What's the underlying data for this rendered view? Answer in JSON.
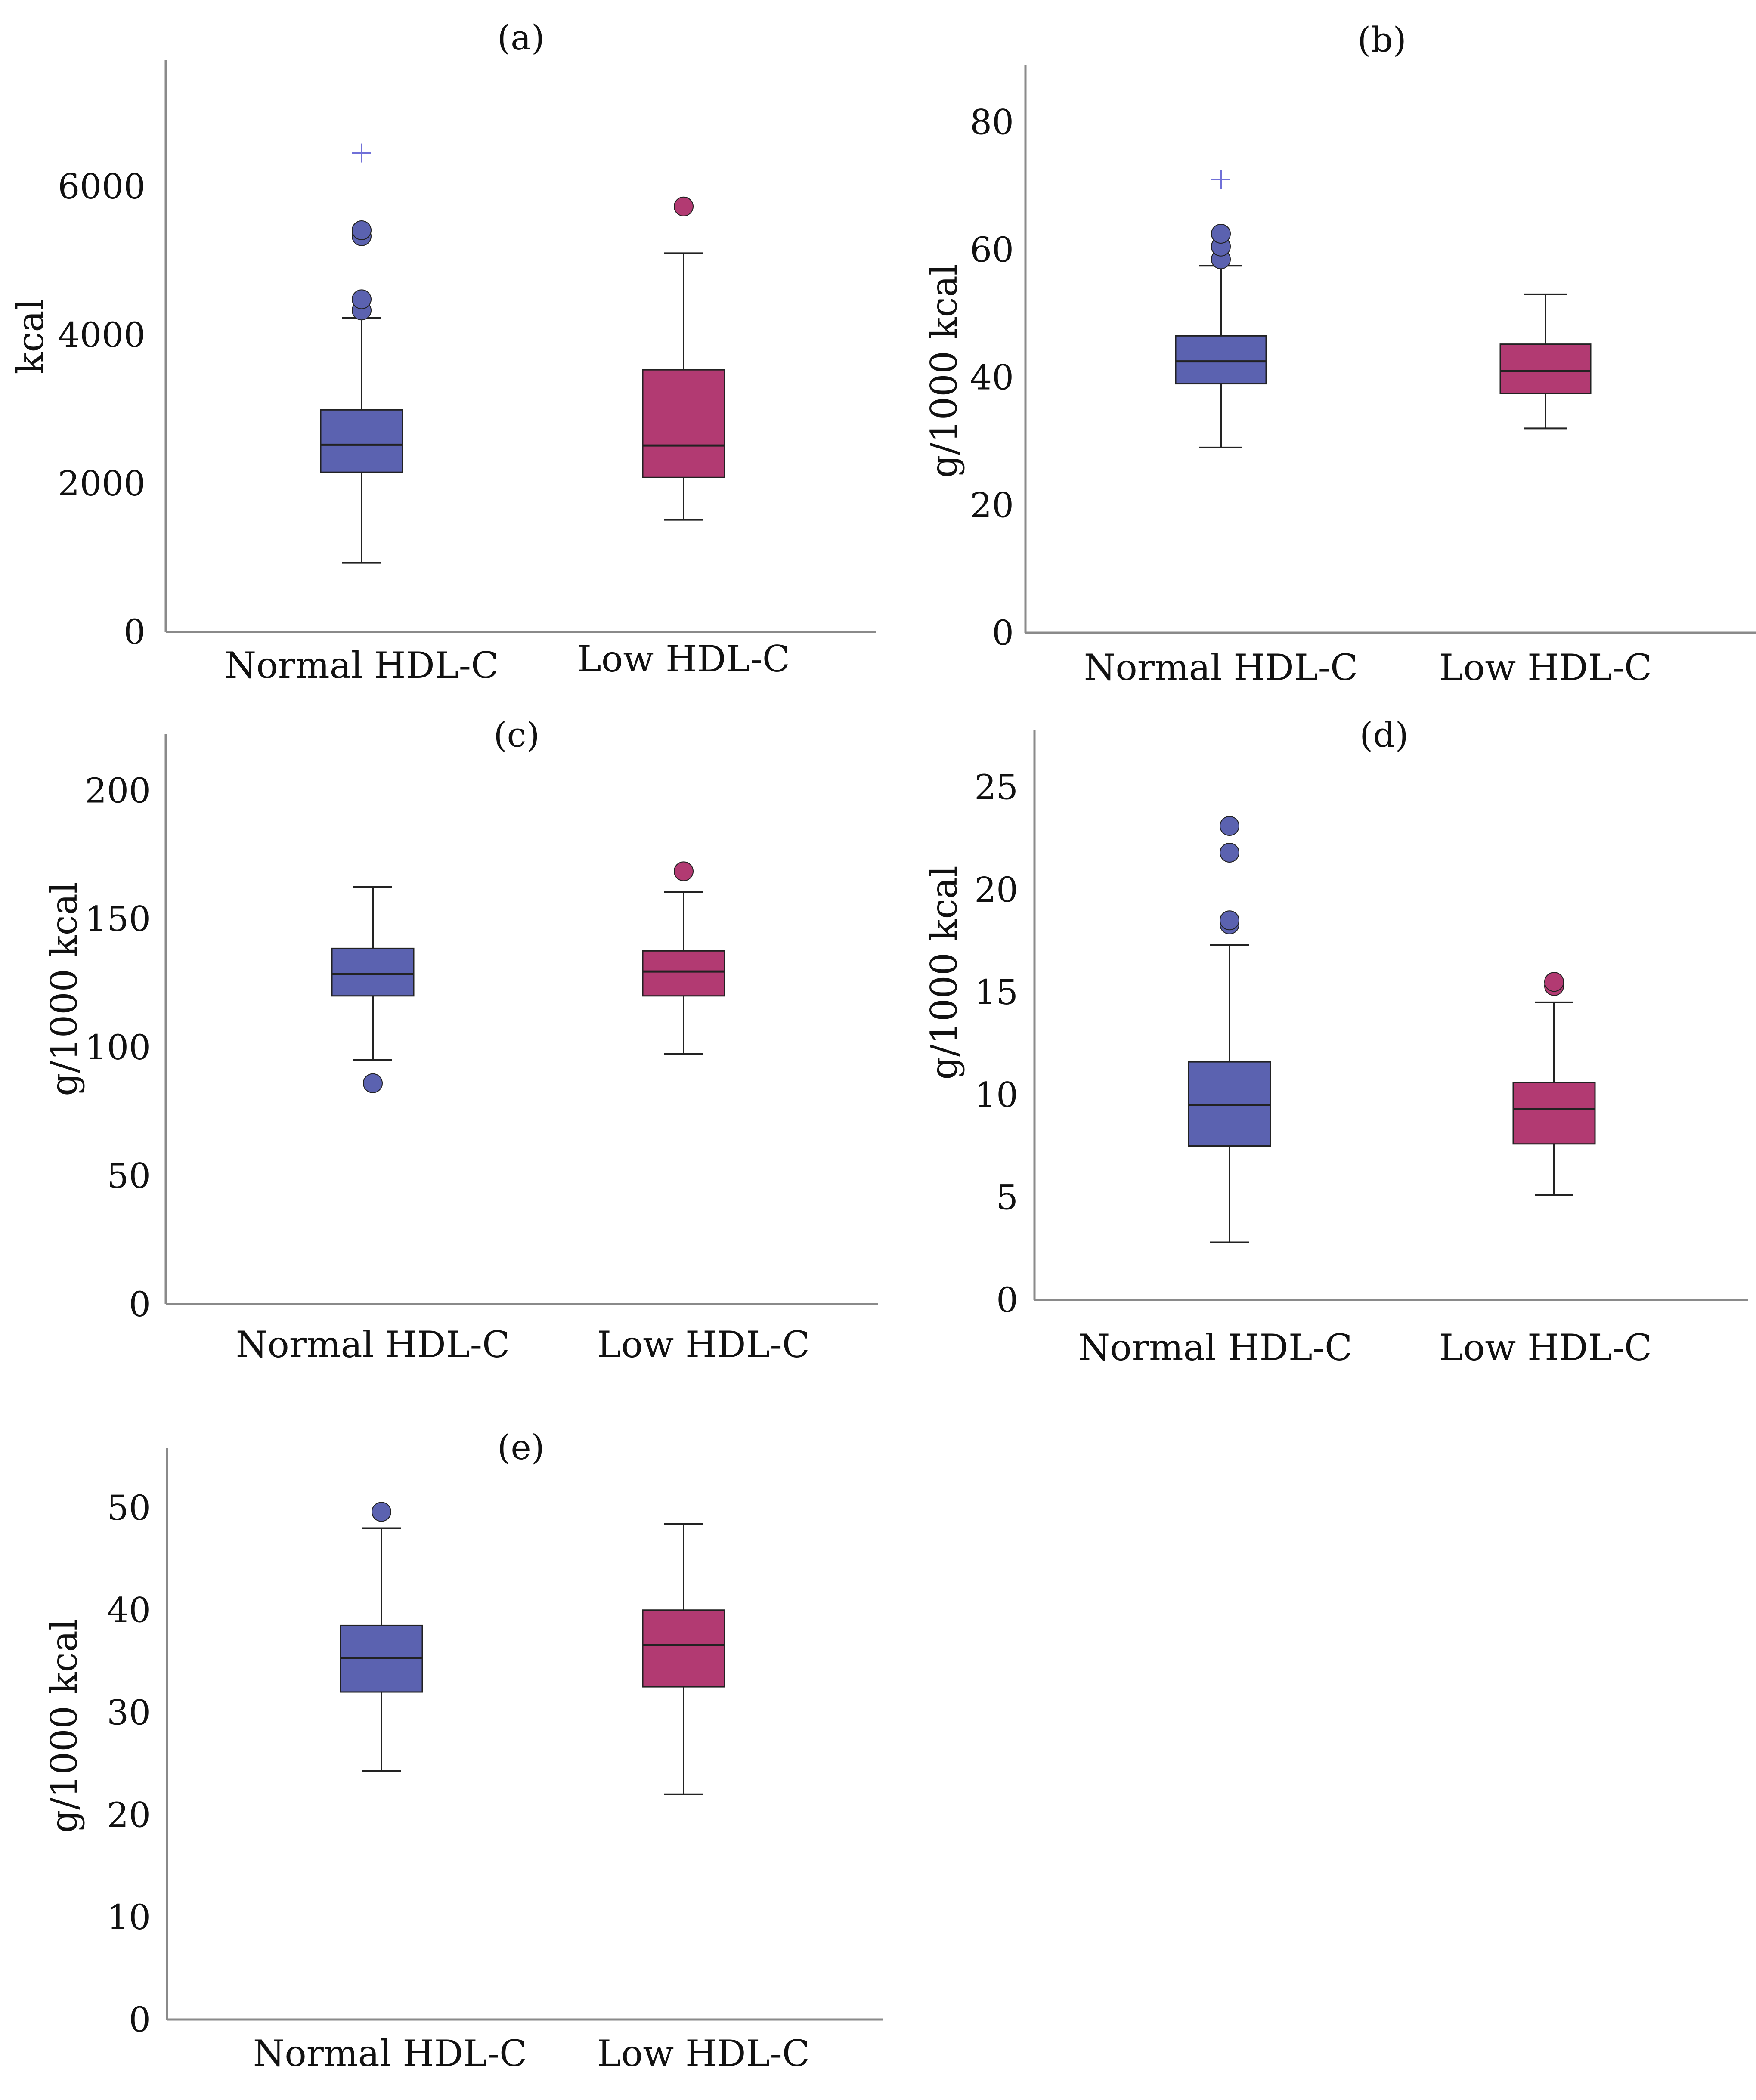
{
  "colors": {
    "normal": "#5B62B0",
    "low": "#B23A72",
    "axis": "#8A8A8A",
    "line": "#222222",
    "extreme": "#7070D8"
  },
  "chart_data": [
    {
      "id": "a",
      "type": "boxplot",
      "title": "(a)",
      "ylabel": "kcal",
      "xlabel": "",
      "ylim": [
        0,
        7700
      ],
      "yticks": [
        0,
        2000,
        4000,
        6000
      ],
      "categories": [
        "Normal HDL-C",
        "Low HDL-C"
      ],
      "series": [
        {
          "name": "Normal HDL-C",
          "q1": 2150,
          "median": 2520,
          "q3": 2990,
          "whisker_low": 930,
          "whisker_high": 4230,
          "outliers": [
            4330,
            4480,
            5330,
            5410
          ],
          "extremes": [
            6450
          ]
        },
        {
          "name": "Low HDL-C",
          "q1": 2080,
          "median": 2510,
          "q3": 3530,
          "whisker_low": 1510,
          "whisker_high": 5100,
          "outliers": [
            5730
          ],
          "extremes": []
        }
      ]
    },
    {
      "id": "b",
      "type": "boxplot",
      "title": "(b)",
      "ylabel": "g/1000 kcal",
      "xlabel": "",
      "ylim": [
        0,
        89
      ],
      "yticks": [
        0,
        20,
        40,
        60,
        80
      ],
      "categories": [
        "Normal HDL-C",
        "Low HDL-C"
      ],
      "series": [
        {
          "name": "Normal HDL-C",
          "q1": 39,
          "median": 42.5,
          "q3": 46.5,
          "whisker_low": 29,
          "whisker_high": 57.5,
          "outliers": [
            58.5,
            60.5,
            62.5
          ],
          "extremes": [
            71
          ]
        },
        {
          "name": "Low HDL-C",
          "q1": 37.5,
          "median": 41,
          "q3": 45.2,
          "whisker_low": 32,
          "whisker_high": 53,
          "outliers": [],
          "extremes": []
        }
      ]
    },
    {
      "id": "c",
      "type": "boxplot",
      "title": "(c)",
      "ylabel": "g/1000 kcal",
      "xlabel": "",
      "ylim": [
        0,
        222
      ],
      "yticks": [
        0,
        50,
        100,
        150,
        200
      ],
      "categories": [
        "Normal HDL-C",
        "Low HDL-C"
      ],
      "series": [
        {
          "name": "Normal HDL-C",
          "q1": 120,
          "median": 128.5,
          "q3": 138.5,
          "whisker_low": 95,
          "whisker_high": 162.5,
          "outliers": [
            86
          ],
          "extremes": []
        },
        {
          "name": "Low HDL-C",
          "q1": 120,
          "median": 129.5,
          "q3": 137.5,
          "whisker_low": 97.5,
          "whisker_high": 160.5,
          "outliers": [
            168.5
          ],
          "extremes": []
        }
      ]
    },
    {
      "id": "d",
      "type": "boxplot",
      "title": "(d)",
      "ylabel": "g/1000 kcal",
      "xlabel": "",
      "ylim": [
        0,
        27.8
      ],
      "yticks": [
        0,
        5,
        10,
        15,
        20,
        25
      ],
      "categories": [
        "Normal HDL-C",
        "Low HDL-C"
      ],
      "series": [
        {
          "name": "Normal HDL-C",
          "q1": 7.5,
          "median": 9.5,
          "q3": 11.6,
          "whisker_low": 2.8,
          "whisker_high": 17.3,
          "outliers": [
            18.3,
            18.5,
            21.8,
            23.1
          ],
          "extremes": []
        },
        {
          "name": "Low HDL-C",
          "q1": 7.6,
          "median": 9.3,
          "q3": 10.6,
          "whisker_low": 5.1,
          "whisker_high": 14.5,
          "outliers": [
            15.3,
            15.5
          ],
          "extremes": []
        }
      ]
    },
    {
      "id": "e",
      "type": "boxplot",
      "title": "(e)",
      "ylabel": "g/1000 kcal",
      "xlabel": "",
      "ylim": [
        0,
        55.8
      ],
      "yticks": [
        0,
        10,
        20,
        30,
        40,
        50
      ],
      "categories": [
        "Normal HDL-C",
        "Low HDL-C"
      ],
      "series": [
        {
          "name": "Normal HDL-C",
          "q1": 32,
          "median": 35.3,
          "q3": 38.5,
          "whisker_low": 24.3,
          "whisker_high": 48,
          "outliers": [
            49.6
          ],
          "extremes": []
        },
        {
          "name": "Low HDL-C",
          "q1": 32.5,
          "median": 36.6,
          "q3": 40,
          "whisker_low": 22,
          "whisker_high": 48.4,
          "outliers": [],
          "extremes": []
        }
      ]
    }
  ]
}
